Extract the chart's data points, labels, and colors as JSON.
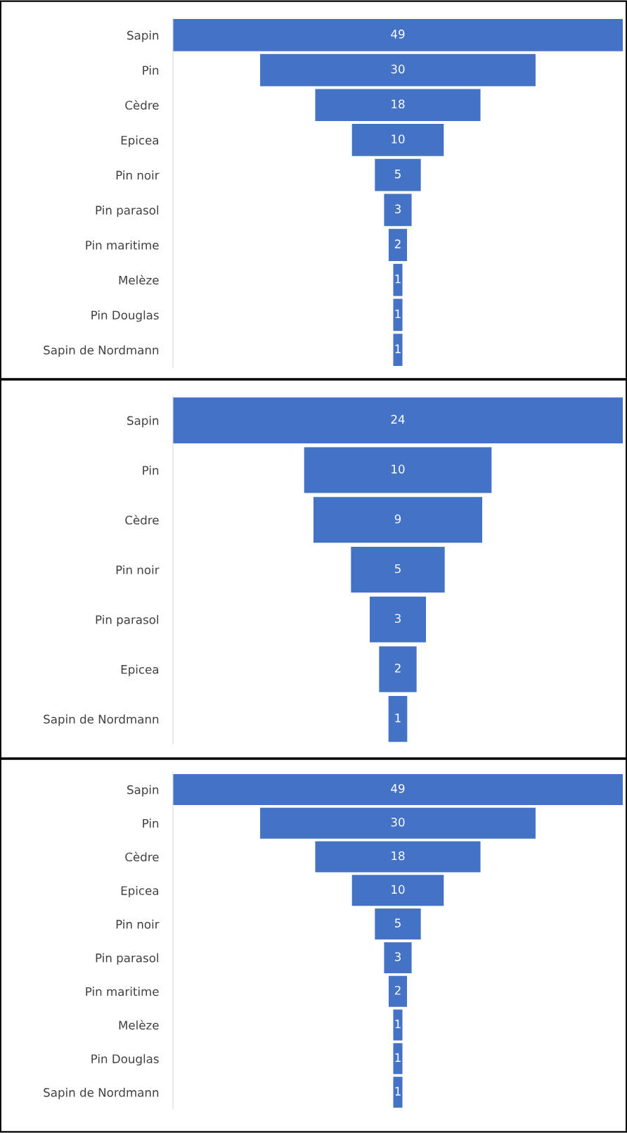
{
  "chart_data": [
    {
      "type": "other",
      "categories": [
        "Sapin",
        "Pin",
        "Cèdre",
        "Epicea",
        "Pin noir",
        "Pin parasol",
        "Pin maritime",
        "Melèze",
        "Pin Douglas",
        "Sapin de Nordmann"
      ],
      "values": [
        49,
        30,
        18,
        10,
        5,
        3,
        2,
        1,
        1,
        1
      ],
      "color": "#4472c4",
      "data_labels": true
    },
    {
      "type": "other",
      "categories": [
        "Sapin",
        "Pin",
        "Cèdre",
        "Pin noir",
        "Pin parasol",
        "Epicea",
        "Sapin de Nordmann"
      ],
      "values": [
        24,
        10,
        9,
        5,
        3,
        2,
        1
      ],
      "color": "#4472c4",
      "data_labels": true
    },
    {
      "type": "other",
      "categories": [
        "Sapin",
        "Pin",
        "Cèdre",
        "Epicea",
        "Pin noir",
        "Pin parasol",
        "Pin maritime",
        "Melèze",
        "Pin Douglas",
        "Sapin de Nordmann"
      ],
      "values": [
        49,
        30,
        18,
        10,
        5,
        3,
        2,
        1,
        1,
        1
      ],
      "color": "#4472c4",
      "data_labels": true
    }
  ]
}
